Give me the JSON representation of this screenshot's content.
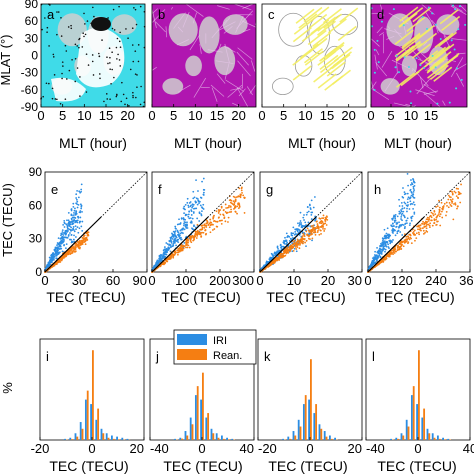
{
  "panels_top": {
    "ylabel": "MLAT (°)",
    "xlabel": "MLT (hour)",
    "xticks": [
      "0",
      "5",
      "10",
      "15",
      "20"
    ],
    "yticks": [
      "90",
      "60",
      "30",
      "0",
      "-30",
      "-60",
      "-90"
    ],
    "letters": [
      "a",
      "b",
      "c",
      "d"
    ]
  },
  "panels_mid": {
    "ylabel": "TEC (TECU)",
    "xlabel": "TEC (TECU)",
    "letters": [
      "e",
      "f",
      "g",
      "h"
    ],
    "yticks": [
      "0",
      "30",
      "60",
      "90"
    ],
    "xticks": [
      [
        "0",
        "30",
        "60",
        "90"
      ],
      [
        "0",
        "100",
        "200",
        "300"
      ],
      [
        "0",
        "10",
        "20",
        "30"
      ],
      [
        "0",
        "120",
        "240",
        "360"
      ]
    ]
  },
  "panels_bot": {
    "ylabel": "%",
    "xlabel": "TEC (TECU)",
    "letters": [
      "i",
      "j",
      "k",
      "l"
    ],
    "xticks": [
      [
        "-20",
        "0",
        "20"
      ],
      [
        "-40",
        "0",
        "40"
      ],
      [
        "-20",
        "0",
        "20"
      ],
      [
        "-40",
        "0",
        "40"
      ]
    ]
  },
  "legend": [
    "IRI",
    "Rean."
  ],
  "colors": {
    "iri": "#2b8de3",
    "rean": "#f57e12",
    "cyan": "#3fdbe8",
    "magenta": "#b016b0",
    "yellow": "#f3ee62",
    "land": "#cfcfcf"
  },
  "chart_data": [
    {
      "type": "scatter",
      "panel": "e",
      "xlim": [
        0,
        90
      ],
      "ylim": [
        0,
        90
      ],
      "series": [
        {
          "name": "IRI",
          "x": [
            5,
            10,
            15,
            20,
            25,
            30
          ],
          "y": [
            15,
            27,
            40,
            50,
            55,
            60
          ]
        },
        {
          "name": "Rean.",
          "x": [
            5,
            10,
            15,
            20,
            25,
            30,
            35
          ],
          "y": [
            5,
            10,
            15,
            20,
            25,
            30,
            35
          ]
        }
      ]
    },
    {
      "type": "scatter",
      "panel": "f",
      "xlim": [
        0,
        300
      ],
      "ylim": [
        0,
        90
      ],
      "series": [
        {
          "name": "IRI",
          "x": [
            20,
            50,
            80,
            110,
            140
          ],
          "y": [
            15,
            30,
            45,
            58,
            68
          ]
        },
        {
          "name": "Rean.",
          "x": [
            20,
            50,
            100,
            150,
            200,
            250
          ],
          "y": [
            6,
            15,
            30,
            45,
            60,
            75
          ]
        }
      ]
    },
    {
      "type": "scatter",
      "panel": "g",
      "xlim": [
        0,
        30
      ],
      "ylim": [
        0,
        90
      ],
      "series": [
        {
          "name": "IRI",
          "x": [
            3,
            6,
            9,
            12,
            15
          ],
          "y": [
            10,
            20,
            30,
            40,
            50
          ]
        },
        {
          "name": "Rean.",
          "x": [
            3,
            6,
            9,
            12,
            15,
            18
          ],
          "y": [
            8,
            16,
            25,
            33,
            40,
            50
          ]
        }
      ]
    },
    {
      "type": "scatter",
      "panel": "h",
      "xlim": [
        0,
        360
      ],
      "ylim": [
        0,
        90
      ],
      "series": [
        {
          "name": "IRI",
          "x": [
            30,
            60,
            90,
            120,
            150
          ],
          "y": [
            15,
            30,
            45,
            60,
            70
          ]
        },
        {
          "name": "Rean.",
          "x": [
            30,
            60,
            120,
            180,
            240,
            300
          ],
          "y": [
            7,
            15,
            30,
            45,
            60,
            75
          ]
        }
      ]
    },
    {
      "type": "bar",
      "panel": "i",
      "xlim": [
        -20,
        20
      ],
      "x": [
        -10,
        -8,
        -6,
        -4,
        -2,
        0,
        2,
        4,
        6,
        8,
        10,
        12,
        14
      ],
      "series": [
        {
          "name": "IRI",
          "values": [
            0.5,
            1,
            3,
            8,
            18,
            16,
            9,
            5,
            3,
            2,
            1.5,
            1,
            0.5
          ]
        },
        {
          "name": "Rean.",
          "values": [
            0.2,
            0.4,
            1.5,
            5,
            22,
            40,
            14,
            3,
            1,
            0.5,
            0.3,
            0.2,
            0.1
          ]
        }
      ]
    },
    {
      "type": "bar",
      "panel": "j",
      "xlim": [
        -40,
        40
      ],
      "x": [
        -20,
        -16,
        -12,
        -8,
        -4,
        0,
        4,
        8,
        12,
        16,
        20,
        24
      ],
      "series": [
        {
          "name": "IRI",
          "values": [
            0.5,
            1,
            4,
            10,
            20,
            18,
            10,
            5,
            3,
            2,
            1,
            0.5
          ]
        },
        {
          "name": "Rean.",
          "values": [
            0.2,
            0.6,
            2,
            7,
            24,
            30,
            12,
            3,
            1,
            0.5,
            0.3,
            0.2
          ]
        }
      ]
    },
    {
      "type": "bar",
      "panel": "k",
      "xlim": [
        -20,
        20
      ],
      "x": [
        -10,
        -8,
        -6,
        -4,
        -2,
        0,
        2,
        4,
        6,
        8,
        10
      ],
      "series": [
        {
          "name": "IRI",
          "values": [
            0.5,
            1.5,
            4,
            9,
            16,
            18,
            12,
            7,
            4,
            2,
            1
          ]
        },
        {
          "name": "Rean.",
          "values": [
            0.2,
            0.5,
            2,
            6,
            20,
            36,
            16,
            5,
            1.5,
            0.5,
            0.2
          ]
        }
      ]
    },
    {
      "type": "bar",
      "panel": "l",
      "xlim": [
        -40,
        40
      ],
      "x": [
        -20,
        -16,
        -12,
        -8,
        -4,
        0,
        4,
        8,
        12,
        16,
        20,
        24
      ],
      "series": [
        {
          "name": "IRI",
          "values": [
            0.5,
            1,
            3,
            9,
            20,
            16,
            10,
            5,
            3,
            2,
            1,
            0.5
          ]
        },
        {
          "name": "Rean.",
          "values": [
            0.2,
            0.5,
            2,
            6,
            24,
            40,
            14,
            3,
            1,
            0.5,
            0.3,
            0.2
          ]
        }
      ]
    }
  ]
}
